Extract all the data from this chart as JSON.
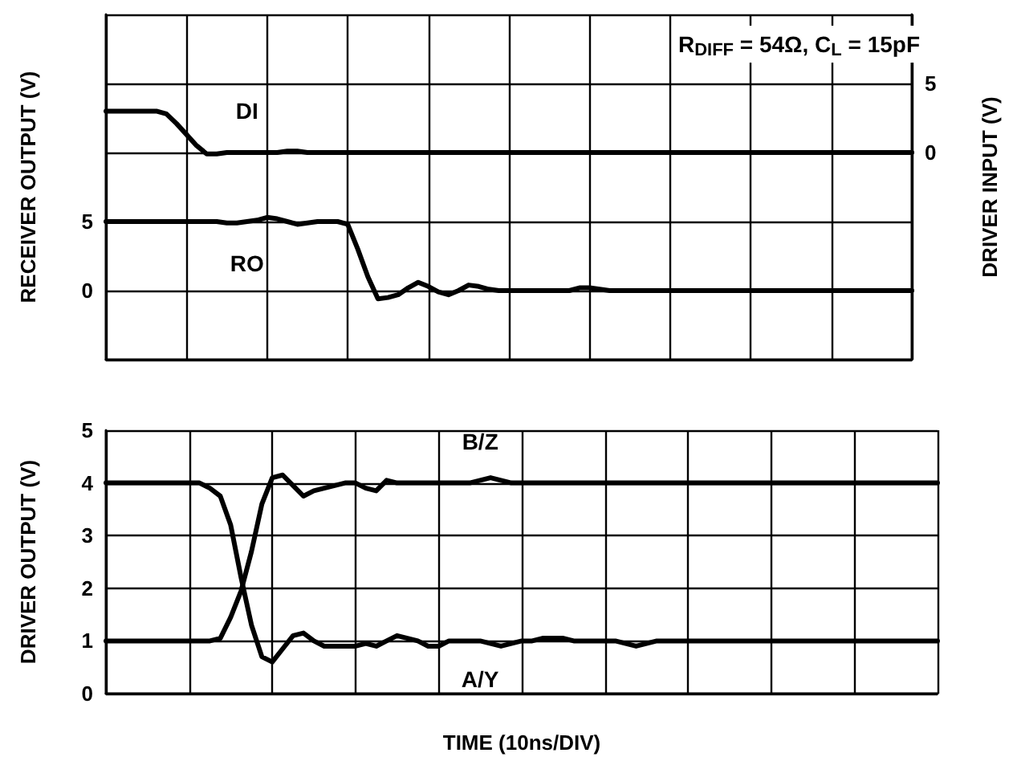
{
  "chart_data": [
    {
      "type": "line",
      "ylabel": "RECEIVER OUTPUT (V)",
      "y2label": "DRIVER INPUT (V)",
      "annotations": [
        "R$_{DIFF}$ = 54Ω, C$_{L}$ = 15pF"
      ],
      "categories": [
        null,
        null,
        null,
        null,
        null,
        null,
        null,
        null,
        null,
        null,
        null,
        null,
        null,
        null,
        null,
        null,
        null,
        null,
        null,
        null,
        null,
        null,
        null,
        null,
        null,
        null,
        null,
        null,
        null,
        null,
        null,
        null,
        null,
        null,
        null,
        null,
        null,
        null,
        null,
        null,
        null,
        null,
        null,
        null,
        null,
        null,
        null,
        null,
        null,
        null,
        null,
        null,
        null,
        null,
        null,
        null,
        null,
        null,
        null,
        null,
        null,
        null,
        null,
        null,
        null,
        null,
        null,
        null,
        null,
        null,
        null,
        null,
        null,
        null,
        null,
        null,
        null,
        null,
        null,
        null,
        null
      ],
      "ylim": [
        -5,
        20
      ],
      "yticks": [
        {
          "value": -5,
          "label": null
        },
        0,
        5,
        {
          "value": 10,
          "label": null
        },
        {
          "value": 15,
          "label": null
        },
        {
          "value": 20,
          "label": null
        }
      ],
      "y2lim": [
        -15,
        10
      ],
      "y2ticks": [
        0,
        5
      ],
      "grid": true,
      "tick_labels": "y",
      "line_style": "solid",
      "series": [
        {
          "name": "DI",
          "color": "#000000",
          "axis": "y2",
          "values": [
            3,
            3,
            3,
            3,
            3,
            3,
            2.8,
            2.1,
            1.3,
            0.5,
            -0.1,
            -0.1,
            0,
            0,
            0,
            0,
            0,
            0,
            0.1,
            0.1,
            0,
            0,
            0,
            0,
            0,
            0,
            0,
            0,
            0,
            0,
            0,
            0,
            0,
            0,
            0,
            0,
            0,
            0,
            0,
            0,
            0,
            0,
            0,
            0,
            0,
            0,
            0,
            0,
            0,
            0,
            0,
            0,
            0,
            0,
            0,
            0,
            0,
            0,
            0,
            0,
            0,
            0,
            0,
            0,
            0,
            0,
            0,
            0,
            0,
            0,
            0,
            0,
            0,
            0,
            0,
            0,
            0,
            0,
            0,
            0,
            0
          ]
        },
        {
          "name": "RO",
          "color": "#000000",
          "values": [
            5,
            5,
            5,
            5,
            5,
            5,
            5,
            5,
            5,
            5,
            5,
            5,
            4.9,
            4.9,
            5,
            5.1,
            5.3,
            5.2,
            5,
            4.8,
            4.9,
            5,
            5,
            5,
            4.8,
            3,
            1,
            -0.6,
            -0.5,
            -0.3,
            0.2,
            0.6,
            0.3,
            -0.1,
            -0.3,
            0,
            0.4,
            0.3,
            0.1,
            0,
            0,
            0,
            0,
            0,
            0,
            0,
            0,
            0.2,
            0.2,
            0.1,
            0,
            0,
            0,
            0,
            0,
            0,
            0,
            0,
            0,
            0,
            0,
            0,
            0,
            0,
            0,
            0,
            0,
            0,
            0,
            0,
            0,
            0,
            0,
            0,
            0,
            0,
            0,
            0,
            0,
            0,
            0
          ]
        }
      ]
    },
    {
      "type": "line",
      "ylabel": "DRIVER OUTPUT (V)",
      "xlabel": "TIME (10ns/DIV)",
      "categories": [
        null,
        null,
        null,
        null,
        null,
        null,
        null,
        null,
        null,
        null,
        null,
        null,
        null,
        null,
        null,
        null,
        null,
        null,
        null,
        null,
        null,
        null,
        null,
        null,
        null,
        null,
        null,
        null,
        null,
        null,
        null,
        null,
        null,
        null,
        null,
        null,
        null,
        null,
        null,
        null,
        null,
        null,
        null,
        null,
        null,
        null,
        null,
        null,
        null,
        null,
        null,
        null,
        null,
        null,
        null,
        null,
        null,
        null,
        null,
        null,
        null,
        null,
        null,
        null,
        null,
        null,
        null,
        null,
        null,
        null,
        null,
        null,
        null,
        null,
        null,
        null,
        null,
        null,
        null,
        null,
        null
      ],
      "ylim": [
        0,
        5
      ],
      "yticks": [
        0,
        1,
        2,
        3,
        4,
        5
      ],
      "grid": true,
      "tick_labels": "y",
      "line_style": "solid",
      "series": [
        {
          "name": "A/Y",
          "color": "#000000",
          "values": [
            4,
            4,
            4,
            4,
            4,
            4,
            4,
            4,
            4,
            4,
            3.9,
            3.75,
            3.2,
            2.2,
            1.3,
            0.7,
            0.6,
            0.85,
            1.1,
            1.15,
            1,
            0.9,
            0.9,
            0.9,
            0.9,
            0.95,
            0.9,
            1,
            1.1,
            1.05,
            1,
            0.9,
            0.9,
            1,
            1,
            1,
            1,
            0.95,
            0.9,
            0.95,
            1,
            1,
            1.05,
            1.05,
            1.05,
            1,
            1,
            1,
            1,
            1,
            0.95,
            0.9,
            0.95,
            1,
            1,
            1,
            1,
            1,
            1,
            1,
            1,
            1,
            1,
            1,
            1,
            1,
            1,
            1,
            1,
            1,
            1,
            1,
            1,
            1,
            1,
            1,
            1,
            1,
            1,
            1,
            1
          ]
        },
        {
          "name": "B/Z",
          "color": "#000000",
          "values": [
            1,
            1,
            1,
            1,
            1,
            1,
            1,
            1,
            1,
            1,
            1,
            1.05,
            1.45,
            1.95,
            2.7,
            3.6,
            4.1,
            4.15,
            3.95,
            3.75,
            3.85,
            3.9,
            3.95,
            4,
            4,
            3.9,
            3.85,
            4.05,
            4,
            4,
            4,
            4,
            4,
            4,
            4,
            4,
            4.05,
            4.1,
            4.05,
            4,
            4,
            4,
            4,
            4,
            4,
            4,
            4,
            4,
            4,
            4,
            4,
            4,
            4,
            4,
            4,
            4,
            4,
            4,
            4,
            4,
            4,
            4,
            4,
            4,
            4,
            4,
            4,
            4,
            4,
            4,
            4,
            4,
            4,
            4,
            4,
            4,
            4,
            4,
            4,
            4,
            4
          ]
        }
      ]
    }
  ]
}
